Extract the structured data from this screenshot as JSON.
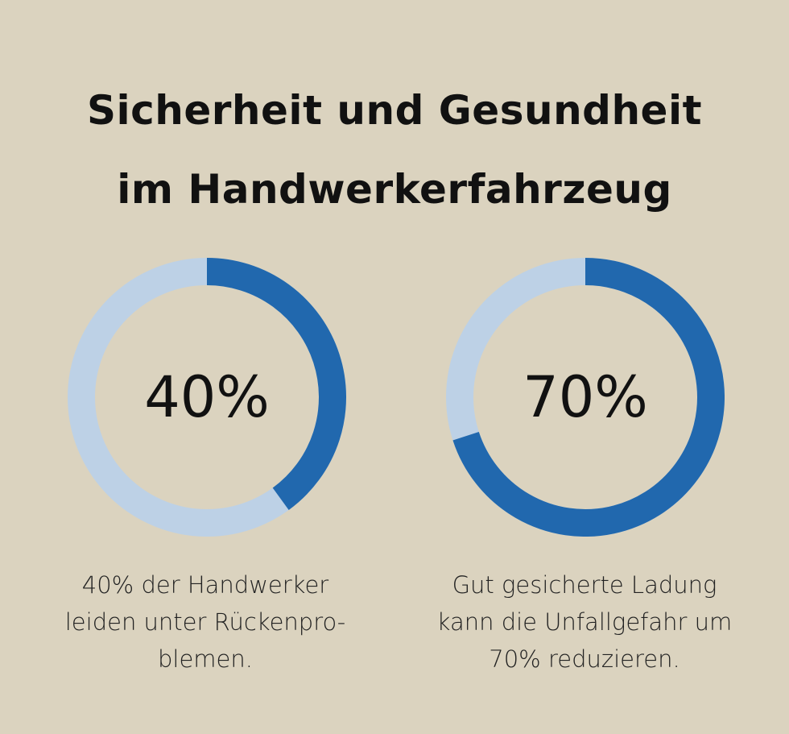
{
  "title_lines": [
    "Sicherheit und Gesundheit",
    "im Handwerkerfahrzeug"
  ],
  "colors": {
    "background": "#dbd3bf",
    "filled": "#2168ae",
    "track": "#bdd1e6",
    "text": "#111111"
  },
  "chart_data": [
    {
      "type": "pie",
      "values": [
        40,
        60
      ],
      "center_label": "40%",
      "caption_lines": [
        "40% der Handwerker",
        "leiden unter Rückenpro-",
        "blemen."
      ]
    },
    {
      "type": "pie",
      "values": [
        70,
        30
      ],
      "center_label": "70%",
      "caption_lines": [
        "Gut gesicherte Ladung",
        "kann die Unfallgefahr um",
        "70% reduzieren."
      ]
    }
  ]
}
